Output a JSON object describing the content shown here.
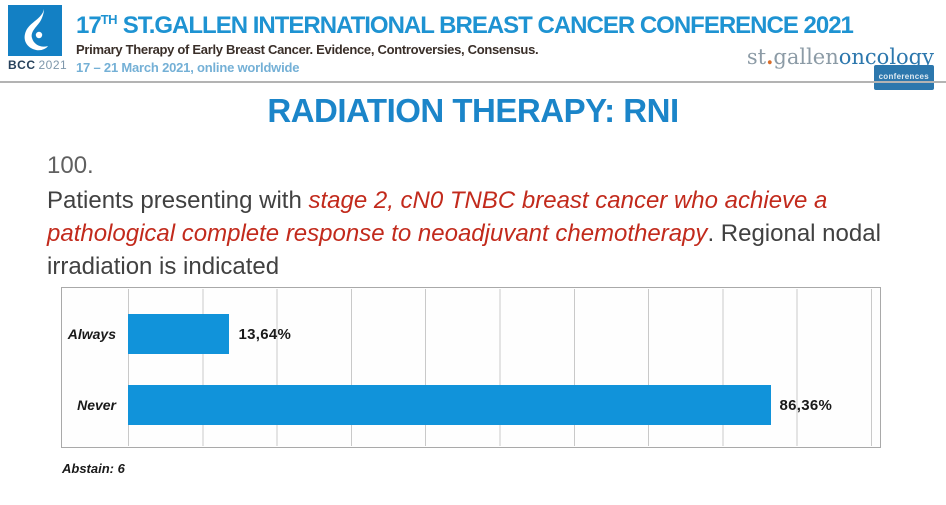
{
  "header": {
    "logo_text": "BCC",
    "logo_year": "2021",
    "title_num": "17",
    "title_sup": "TH",
    "title_rest": " ST.GALLEN INTERNATIONAL BREAST CANCER CONFERENCE 2021",
    "subtitle": "Primary Therapy of Early Breast Cancer. Evidence, Controversies, Consensus.",
    "dates": "17 – 21 March 2021, online worldwide",
    "brand_st": "st",
    "brand_dot": ".",
    "brand_gallen": "gallen",
    "brand_oncology": "oncology",
    "brand_conferences": "conferences"
  },
  "slide": {
    "title": "RADIATION THERAPY: RNI",
    "question_number": "100.",
    "question_part1": "Patients presenting with ",
    "question_highlight": "stage 2, cN0 TNBC breast cancer who achieve a pathological complete response to neoadjuvant chemotherapy",
    "question_part2": ". Regional nodal irradiation is indicated",
    "abstain_note": "Abstain: 6"
  },
  "chart_data": {
    "type": "bar",
    "orientation": "horizontal",
    "categories": [
      "Always",
      "Never"
    ],
    "values": [
      13.64,
      86.36
    ],
    "value_labels": [
      "13,64%",
      "86,36%"
    ],
    "xlim": [
      0,
      100
    ],
    "gridline_interval_percent": 10,
    "grid": "on",
    "legend": "none",
    "bar_color": "#1193da"
  },
  "colors": {
    "slide_title_blue": "#1b85c9",
    "header_title_blue": "#1e93d2",
    "dates_light_blue": "#74b0d6",
    "highlight_red": "#c22a1c",
    "body_text_gray": "#414141",
    "bar_blue": "#1193da",
    "logo_square_blue": "#1380c4"
  }
}
